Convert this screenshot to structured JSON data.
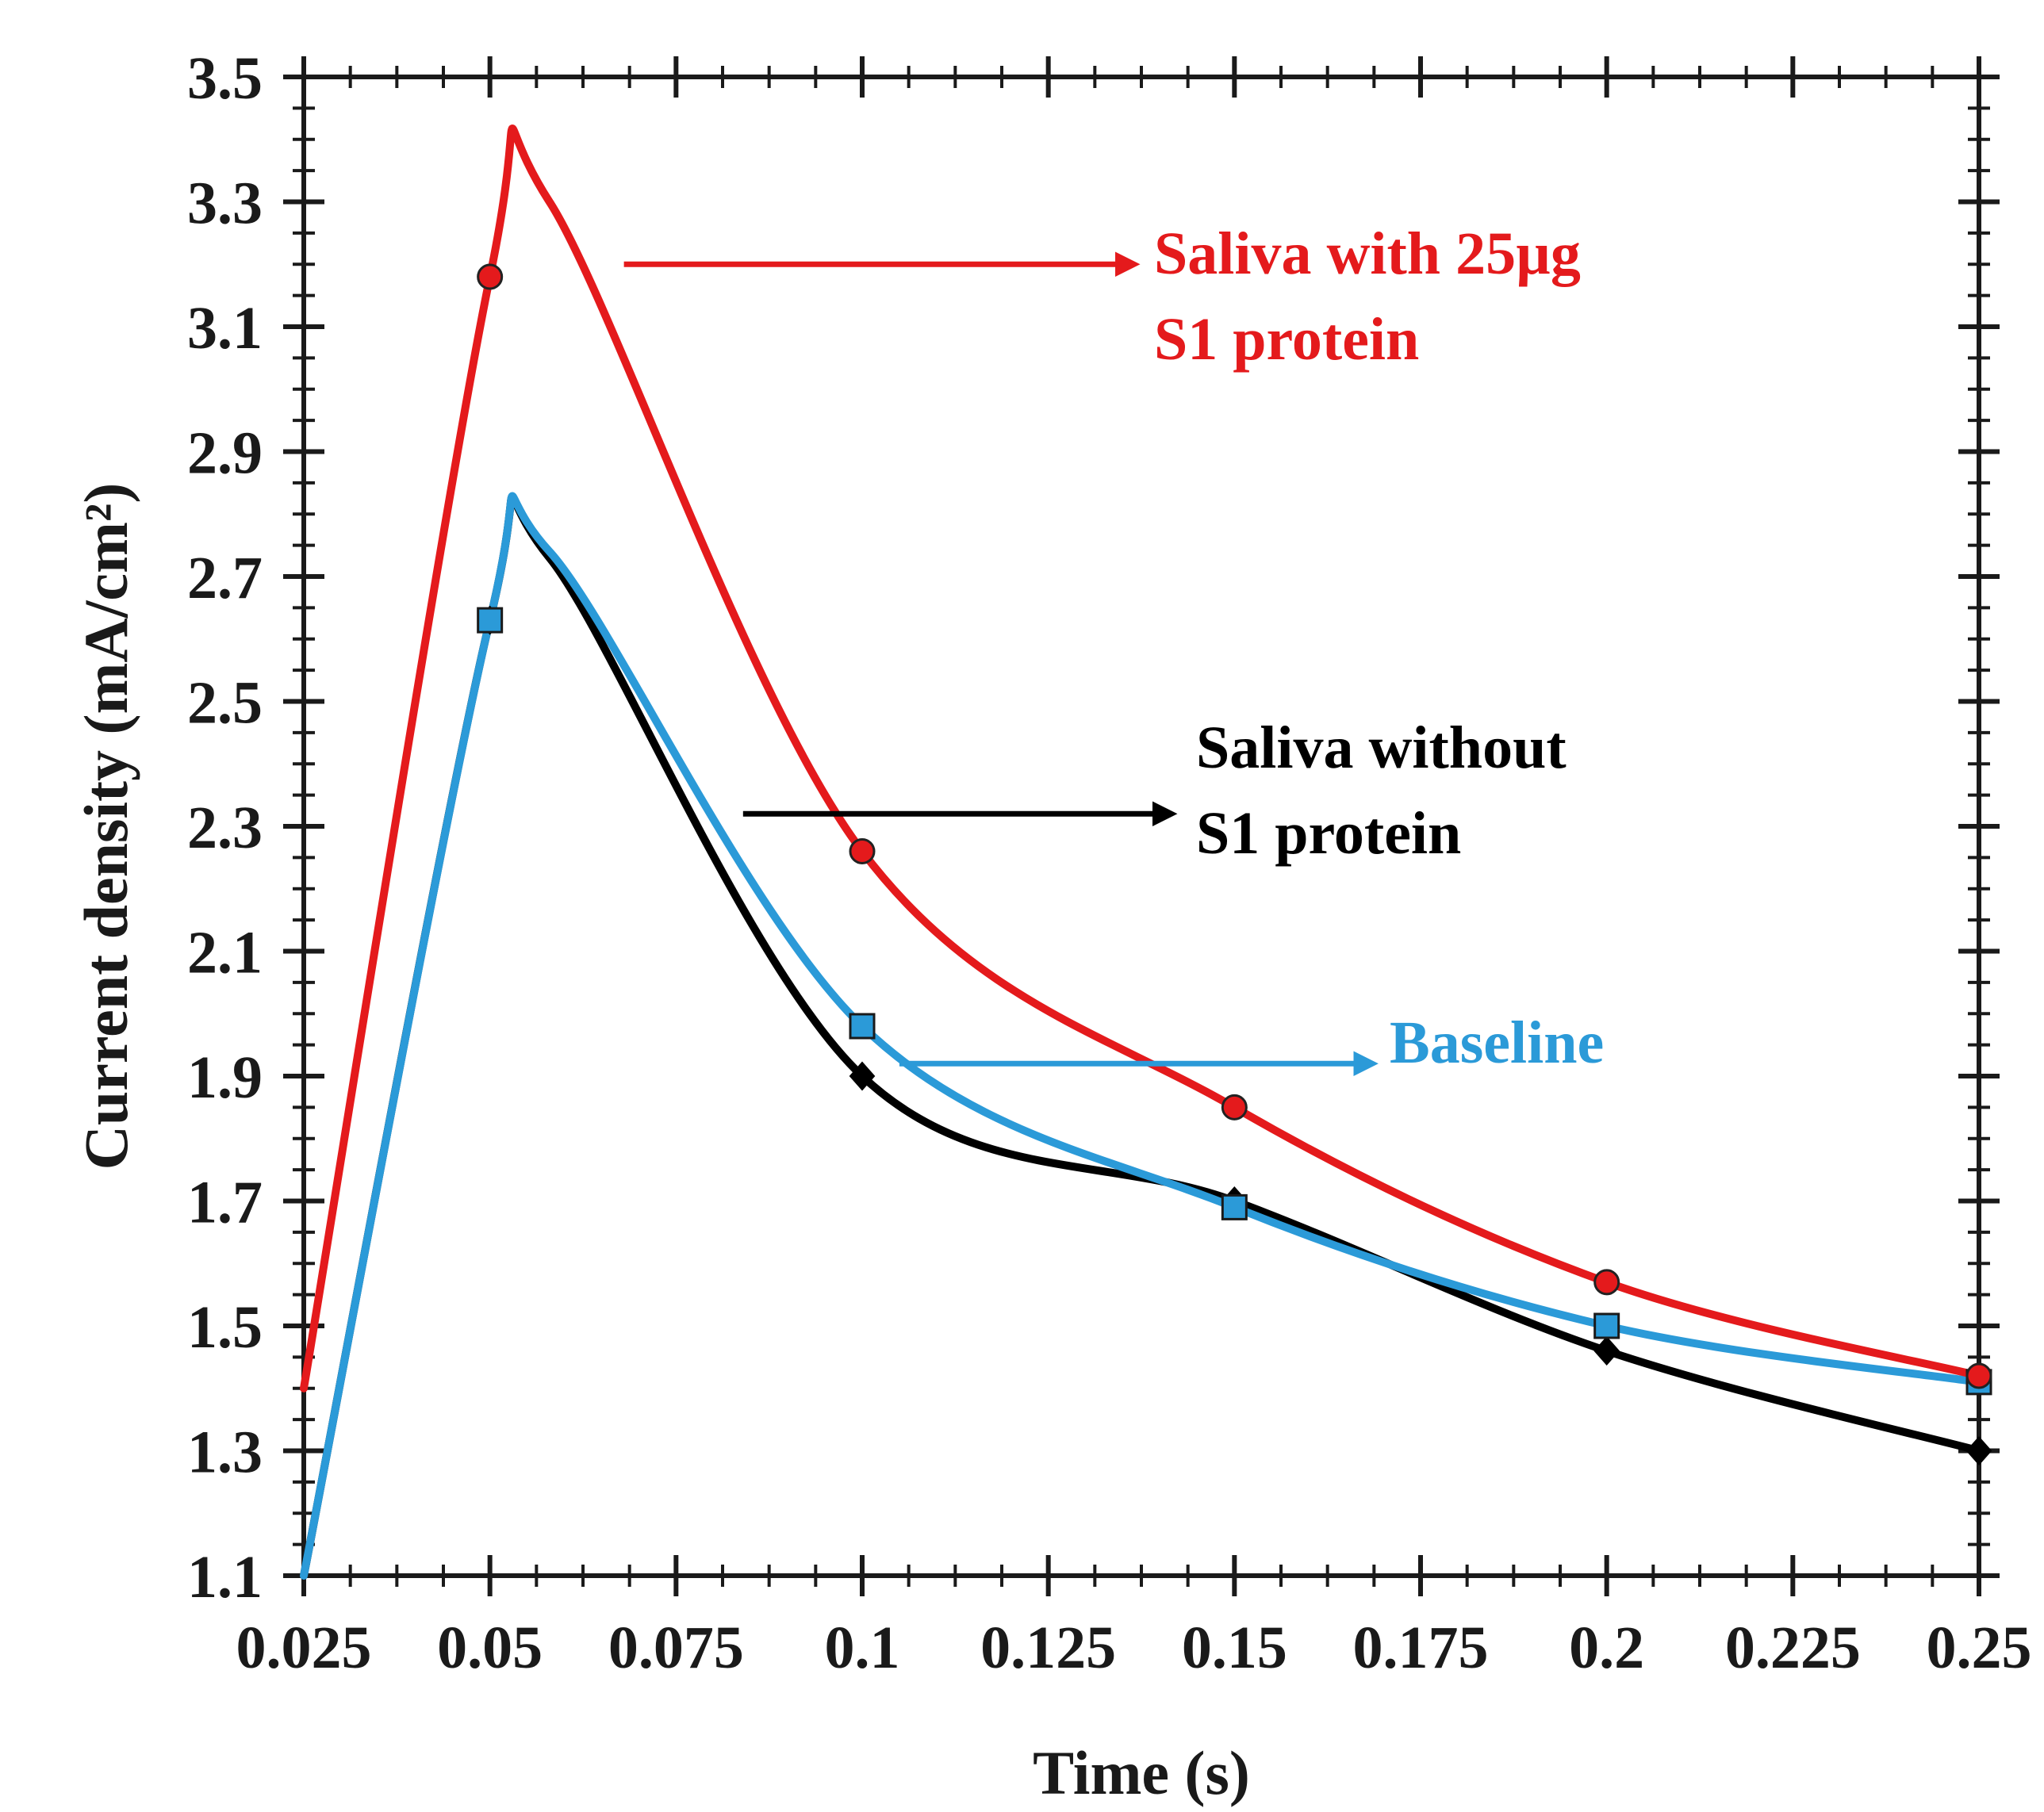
{
  "chart_data": {
    "type": "line",
    "title": "",
    "xlabel": "Time (s)",
    "ylabel": "Current density (mA/cm²)",
    "xlim": [
      0.025,
      0.25
    ],
    "ylim": [
      1.1,
      3.5
    ],
    "x_ticks": [
      0.025,
      0.05,
      0.075,
      0.1,
      0.125,
      0.15,
      0.175,
      0.2,
      0.225,
      0.25
    ],
    "x_tick_labels": [
      "0.025",
      "0.05",
      "0.075",
      "0.1",
      "0.125",
      "0.15",
      "0.175",
      "0.2",
      "0.225",
      "0.25"
    ],
    "y_ticks": [
      1.1,
      1.3,
      1.5,
      1.7,
      1.9,
      2.1,
      2.3,
      2.5,
      2.7,
      2.9,
      3.1,
      3.3,
      3.5
    ],
    "y_tick_labels": [
      "1.1",
      "1.3",
      "1.5",
      "1.7",
      "1.9",
      "2.1",
      "2.3",
      "2.5",
      "2.7",
      "2.9",
      "3.1",
      "3.3",
      "3.5"
    ],
    "grid": false,
    "legend": "none (inline annotations)",
    "series": [
      {
        "name": "Saliva with 25µg S1 protein",
        "color": "#e41a1c",
        "marker": "circle",
        "x": [
          0.025,
          0.05,
          0.1,
          0.15,
          0.2,
          0.25
        ],
        "values": [
          1.4,
          3.18,
          2.26,
          1.85,
          1.57,
          1.42
        ],
        "curve_peak": [
          0.058,
          3.3
        ]
      },
      {
        "name": "Saliva without S1 protein",
        "color": "#000000",
        "marker": "diamond",
        "x": [
          0.025,
          0.05,
          0.1,
          0.15,
          0.2,
          0.25
        ],
        "values": [
          1.1,
          2.63,
          1.9,
          1.7,
          1.46,
          1.3
        ],
        "curve_peak": [
          0.058,
          2.73
        ]
      },
      {
        "name": "Baseline",
        "color": "#2b9ad8",
        "marker": "square",
        "x": [
          0.025,
          0.05,
          0.1,
          0.15,
          0.2,
          0.25
        ],
        "values": [
          1.1,
          2.63,
          1.98,
          1.69,
          1.5,
          1.41
        ],
        "curve_peak": [
          0.058,
          2.74
        ]
      }
    ],
    "annotations": [
      {
        "lines": [
          "Saliva with 25µg",
          "S1 protein"
        ],
        "color": "#e41a1c",
        "arrow_from": [
          0.068,
          3.2
        ],
        "arrow_to": [
          0.136,
          3.2
        ]
      },
      {
        "lines": [
          "Saliva without",
          "S1 protein"
        ],
        "color": "#000000",
        "arrow_from": [
          0.084,
          2.32
        ],
        "arrow_to": [
          0.141,
          2.32
        ]
      },
      {
        "lines": [
          "Baseline"
        ],
        "color": "#2b9ad8",
        "arrow_from": [
          0.105,
          1.92
        ],
        "arrow_to": [
          0.168,
          1.92
        ]
      }
    ]
  }
}
